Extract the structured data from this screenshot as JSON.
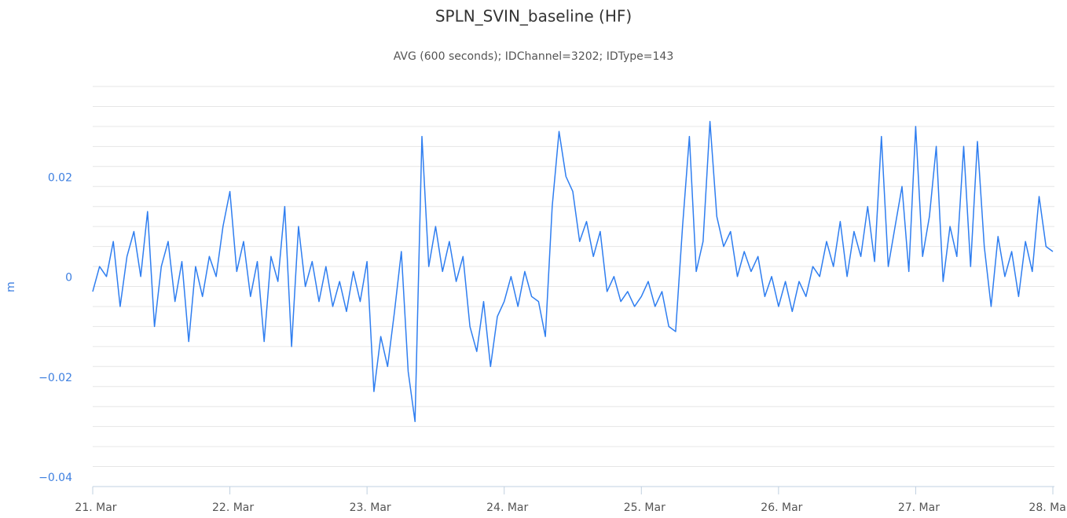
{
  "chart_data": {
    "type": "line",
    "title": "SPLN_SVIN_baseline (HF)",
    "subtitle": "AVG (600 seconds); IDChannel=3202; IDType=143",
    "y_label": "m",
    "x": [
      21,
      21.05,
      21.1,
      21.15,
      21.2,
      21.25,
      21.3,
      21.35,
      21.4,
      21.45,
      21.5,
      21.55,
      21.6,
      21.65,
      21.7,
      21.75,
      21.8,
      21.85,
      21.9,
      21.95,
      22,
      22.05,
      22.1,
      22.15,
      22.2,
      22.25,
      22.3,
      22.35,
      22.4,
      22.45,
      22.5,
      22.55,
      22.6,
      22.65,
      22.7,
      22.75,
      22.8,
      22.85,
      22.9,
      22.95,
      23,
      23.05,
      23.1,
      23.15,
      23.2,
      23.25,
      23.3,
      23.35,
      23.4,
      23.45,
      23.5,
      23.55,
      23.6,
      23.65,
      23.7,
      23.75,
      23.8,
      23.85,
      23.9,
      23.95,
      24,
      24.05,
      24.1,
      24.15,
      24.2,
      24.25,
      24.3,
      24.35,
      24.4,
      24.45,
      24.5,
      24.55,
      24.6,
      24.65,
      24.7,
      24.75,
      24.8,
      24.85,
      24.9,
      24.95,
      25,
      25.05,
      25.1,
      25.15,
      25.2,
      25.25,
      25.3,
      25.35,
      25.4,
      25.45,
      25.5,
      25.55,
      25.6,
      25.65,
      25.7,
      25.75,
      25.8,
      25.85,
      25.9,
      25.95,
      26,
      26.05,
      26.1,
      26.15,
      26.2,
      26.25,
      26.3,
      26.35,
      26.4,
      26.45,
      26.5,
      26.55,
      26.6,
      26.65,
      26.7,
      26.75,
      26.8,
      26.85,
      26.9,
      26.95,
      27,
      27.05,
      27.1,
      27.15,
      27.2,
      27.25,
      27.3,
      27.35,
      27.4,
      27.45,
      27.5,
      27.55,
      27.6,
      27.65,
      27.7,
      27.75,
      27.8,
      27.85,
      27.9,
      27.95,
      28
    ],
    "series": [
      {
        "name": "SPLN_SVIN_baseline (HF)",
        "color": "#2f7ef0",
        "values": [
          -0.001,
          0.004,
          0.002,
          0.009,
          -0.004,
          0.006,
          0.011,
          0.002,
          0.015,
          -0.008,
          0.004,
          0.009,
          -0.003,
          0.005,
          -0.011,
          0.004,
          -0.002,
          0.006,
          0.002,
          0.012,
          0.019,
          0.003,
          0.009,
          -0.002,
          0.005,
          -0.011,
          0.006,
          0.001,
          0.016,
          -0.012,
          0.012,
          0,
          0.005,
          -0.003,
          0.004,
          -0.004,
          0.001,
          -0.005,
          0.003,
          -0.003,
          0.005,
          -0.021,
          -0.01,
          -0.016,
          -0.005,
          0.007,
          -0.017,
          -0.027,
          0.03,
          0.004,
          0.012,
          0.003,
          0.009,
          0.001,
          0.006,
          -0.008,
          -0.013,
          -0.003,
          -0.016,
          -0.006,
          -0.003,
          0.002,
          -0.004,
          0.003,
          -0.002,
          -0.003,
          -0.01,
          0.016,
          0.031,
          0.022,
          0.019,
          0.009,
          0.013,
          0.006,
          0.011,
          -0.001,
          0.002,
          -0.003,
          -0.001,
          -0.004,
          -0.002,
          0.001,
          -0.004,
          -0.001,
          -0.008,
          -0.009,
          0.012,
          0.03,
          0.003,
          0.009,
          0.033,
          0.014,
          0.008,
          0.011,
          0.002,
          0.007,
          0.003,
          0.006,
          -0.002,
          0.002,
          -0.004,
          0.001,
          -0.005,
          0.001,
          -0.002,
          0.004,
          0.002,
          0.009,
          0.004,
          0.013,
          0.002,
          0.011,
          0.006,
          0.016,
          0.005,
          0.03,
          0.004,
          0.012,
          0.02,
          0.003,
          0.032,
          0.006,
          0.014,
          0.028,
          0.001,
          0.012,
          0.006,
          0.028,
          0.004,
          0.029,
          0.008,
          -0.004,
          0.01,
          0.002,
          0.007,
          -0.002,
          0.009,
          0.003,
          0.018,
          0.008,
          0.007
        ]
      }
    ],
    "xlim": [
      21,
      28
    ],
    "xticks": [
      {
        "value": 21,
        "label": "21. Mar"
      },
      {
        "value": 22,
        "label": "22. Mar"
      },
      {
        "value": 23,
        "label": "23. Mar"
      },
      {
        "value": 24,
        "label": "24. Mar"
      },
      {
        "value": 25,
        "label": "25. Mar"
      },
      {
        "value": 26,
        "label": "26. Mar"
      },
      {
        "value": 27,
        "label": "27. Mar"
      },
      {
        "value": 28,
        "label": "28. Mar"
      }
    ],
    "ylim": [
      -0.04,
      0.04
    ],
    "yticks": [
      {
        "value": -0.04,
        "label": "−0.04"
      },
      {
        "value": -0.02,
        "label": "−0.02"
      },
      0,
      0.02
    ],
    "ygrid": [
      -0.04,
      -0.036,
      -0.032,
      -0.028,
      -0.024,
      -0.02,
      -0.016,
      -0.012,
      -0.008,
      -0.004,
      0,
      0.004,
      0.008,
      0.012,
      0.016,
      0.02,
      0.024,
      0.028,
      0.032,
      0.036,
      0.04
    ],
    "grid": true
  }
}
